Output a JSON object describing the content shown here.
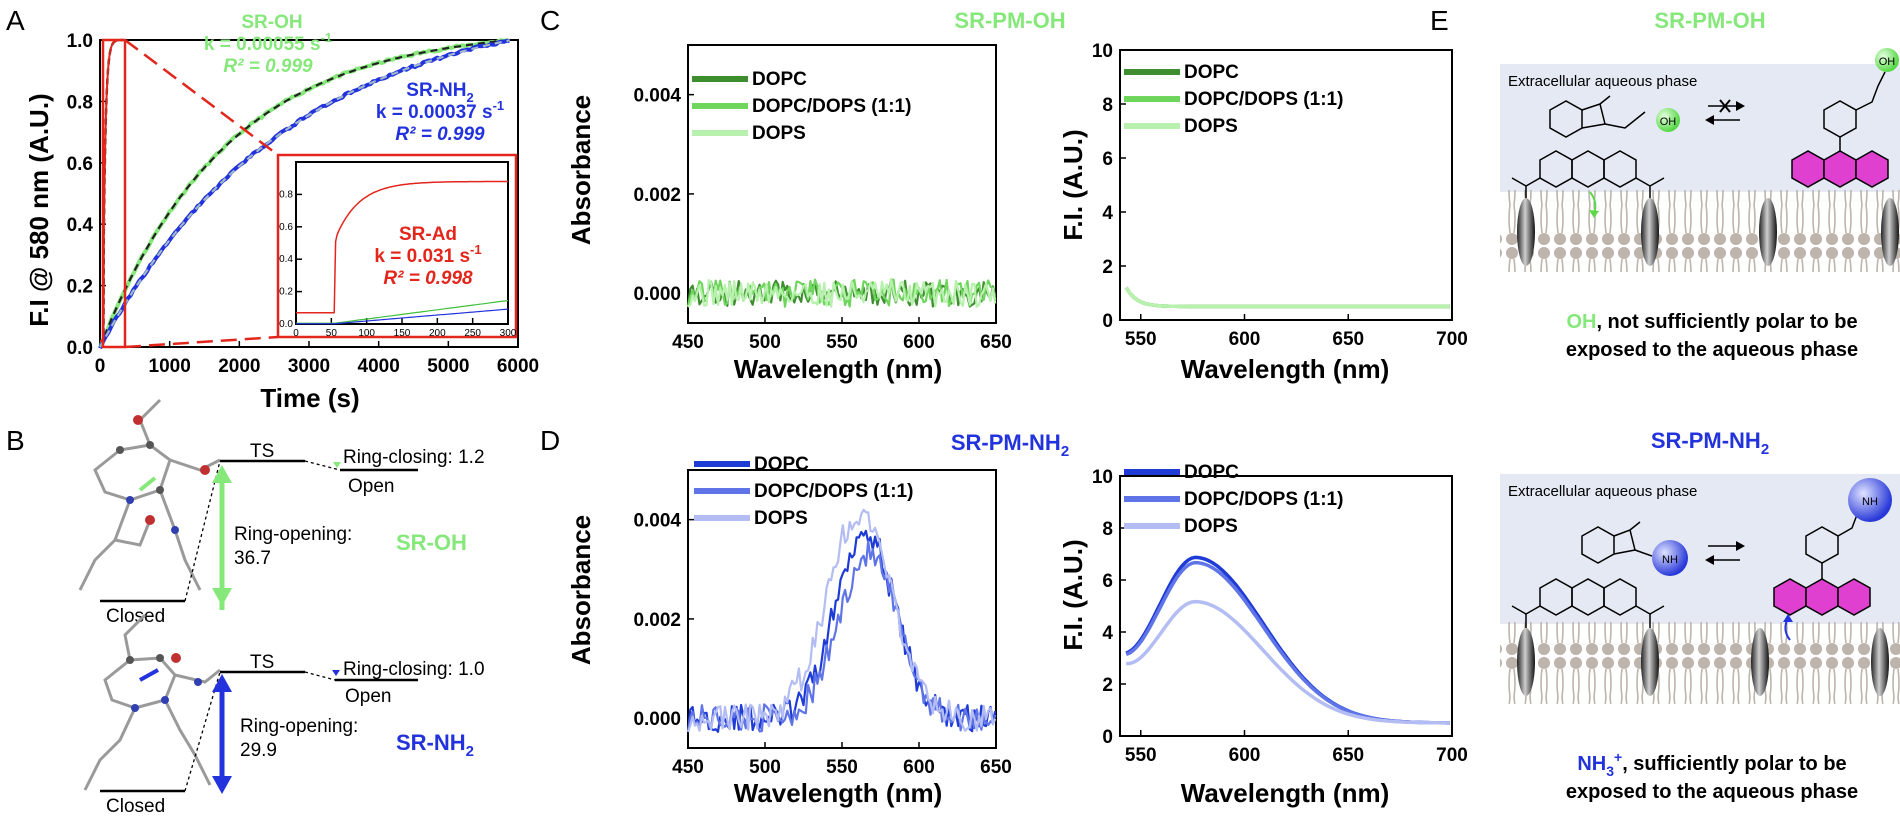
{
  "panels": {
    "A": "A",
    "B": "B",
    "C": "C",
    "D": "D",
    "E": "E"
  },
  "colors": {
    "green": "#86e87a",
    "green_dark": "#3a8a2a",
    "blue": "#2233dd",
    "red": "#e3261c"
  },
  "chart_data": [
    {
      "panel": "A",
      "type": "line",
      "xlabel": "Time (s)",
      "ylabel": "F.I @ 580 nm (A.U.)",
      "xlim": [
        0,
        6000
      ],
      "ylim": [
        0,
        1.0
      ],
      "xticks": [
        "0",
        "1000",
        "2000",
        "3000",
        "4000",
        "5000",
        "6000"
      ],
      "yticks": [
        "0.0",
        "0.2",
        "0.4",
        "0.6",
        "0.8",
        "1.0"
      ],
      "series": [
        {
          "name": "SR-OH",
          "k": 0.00055,
          "color": "#86e87a"
        },
        {
          "name": "SR-NH2",
          "k": 0.00037,
          "color": "#2233dd"
        },
        {
          "name": "SR-Ad",
          "k": 0.031,
          "color": "#e3261c"
        }
      ],
      "annotations": {
        "oh": {
          "name": "SR-OH",
          "k": "k = 0.00055 s",
          "sup": "-1",
          "r2": "R² = 0.999"
        },
        "nh": {
          "name": "SR-NH",
          "sub": "2",
          "k": "k = 0.00037 s",
          "sup": "-1",
          "r2": "R² = 0.999"
        },
        "ad": {
          "name": "SR-Ad",
          "k": "k = 0.031 s",
          "sup": "-1",
          "r2": "R² = 0.998"
        }
      },
      "inset": {
        "xlim": [
          0,
          300
        ],
        "ylim": [
          0,
          1.0
        ],
        "xticks": [
          "0",
          "50",
          "100",
          "150",
          "200",
          "250",
          "300"
        ],
        "yticks": [
          "0.0",
          "0.2",
          "0.4",
          "0.6",
          "0.8"
        ]
      }
    },
    {
      "panel": "C-left",
      "type": "line",
      "title": "SR-PM-OH",
      "xlabel": "Wavelength (nm)",
      "ylabel": "Absorbance",
      "xlim": [
        450,
        650
      ],
      "ylim": [
        -0.0006,
        0.005
      ],
      "xticks": [
        "450",
        "500",
        "550",
        "600",
        "650"
      ],
      "yticks": [
        "0.000",
        "0.002",
        "0.004"
      ],
      "legend": [
        "DOPC",
        "DOPC/DOPS (1:1)",
        "DOPS"
      ],
      "series": [
        {
          "name": "DOPC",
          "color": "#3e8e30",
          "peak": 0,
          "center": 565,
          "sigma": 20
        },
        {
          "name": "DOPC/DOPS (1:1)",
          "color": "#6fd65d",
          "peak": 0,
          "center": 565,
          "sigma": 20
        },
        {
          "name": "DOPS",
          "color": "#b8f0ae",
          "peak": 0,
          "center": 565,
          "sigma": 20
        }
      ]
    },
    {
      "panel": "C-right",
      "type": "line",
      "xlabel": "Wavelength (nm)",
      "ylabel": "F.I. (A.U.)",
      "xlim": [
        540,
        700
      ],
      "ylim": [
        0,
        10
      ],
      "xticks": [
        "550",
        "600",
        "650",
        "700"
      ],
      "yticks": [
        "0",
        "2",
        "4",
        "6",
        "8",
        "10"
      ],
      "legend": [
        "DOPC",
        "DOPC/DOPS (1:1)",
        "DOPS"
      ],
      "series": [
        {
          "name": "DOPC",
          "color": "#3e8e30",
          "peak": 0,
          "base": 0.5
        },
        {
          "name": "DOPC/DOPS (1:1)",
          "color": "#6fd65d",
          "peak": 0,
          "base": 0.5
        },
        {
          "name": "DOPS",
          "color": "#b8f0ae",
          "peak": 0,
          "base": 0.5
        }
      ]
    },
    {
      "panel": "D-left",
      "type": "line",
      "title": "SR-PM-NH",
      "title_sub": "2",
      "xlabel": "Wavelength (nm)",
      "ylabel": "Absorbance",
      "xlim": [
        450,
        650
      ],
      "ylim": [
        -0.0006,
        0.005
      ],
      "xticks": [
        "450",
        "500",
        "550",
        "600",
        "650"
      ],
      "yticks": [
        "0.000",
        "0.002",
        "0.004"
      ],
      "legend": [
        "DOPC",
        "DOPC/DOPS (1:1)",
        "DOPS"
      ],
      "series": [
        {
          "name": "DOPC",
          "color": "#1f3bd6",
          "peak": 0.0038,
          "center": 565,
          "sigma": 19
        },
        {
          "name": "DOPC/DOPS (1:1)",
          "color": "#5f74e6",
          "peak": 0.0033,
          "center": 567,
          "sigma": 19
        },
        {
          "name": "DOPS",
          "color": "#b3bdf3",
          "peak": 0.0041,
          "center": 561,
          "sigma": 21
        }
      ]
    },
    {
      "panel": "D-right",
      "type": "line",
      "xlabel": "Wavelength (nm)",
      "ylabel": "F.I. (A.U.)",
      "xlim": [
        540,
        700
      ],
      "ylim": [
        0,
        10
      ],
      "xticks": [
        "550",
        "600",
        "650",
        "700"
      ],
      "yticks": [
        "0",
        "2",
        "4",
        "6",
        "8",
        "10"
      ],
      "legend": [
        "DOPC",
        "DOPC/DOPS (1:1)",
        "DOPS"
      ],
      "series": [
        {
          "name": "DOPC",
          "color": "#1f3bd6",
          "peak": 6.3,
          "center": 577,
          "base": 0.5
        },
        {
          "name": "DOPC/DOPS (1:1)",
          "color": "#5f74e6",
          "peak": 6.1,
          "center": 577,
          "base": 0.5
        },
        {
          "name": "DOPS",
          "color": "#b3bdf3",
          "peak": 4.6,
          "center": 577,
          "base": 0.5
        }
      ]
    }
  ],
  "panel_b": {
    "oh": {
      "ts": "TS",
      "closing": "Ring-closing: 1.2",
      "open": "Open",
      "opening1": "Ring-opening:",
      "opening2": "36.7",
      "closed": "Closed",
      "label": "SR-OH"
    },
    "nh": {
      "ts": "TS",
      "closing": "Ring-closing: 1.0",
      "open": "Open",
      "opening1": "Ring-opening:",
      "opening2": "29.9",
      "closed": "Closed",
      "label": "SR-NH",
      "label_sub": "2"
    }
  },
  "panel_e": {
    "top": {
      "title": "SR-PM-OH",
      "phase": "Extracellular aqueous phase",
      "group": "OH",
      "cap1_hl": "OH",
      "cap1_rest": ", not sufficiently polar to be",
      "cap2": "exposed to the aqueous phase"
    },
    "bottom": {
      "title": "SR-PM-NH",
      "title_sub": "2",
      "phase": "Extracellular aqueous phase",
      "group": "NH",
      "cap1_hl": "NH",
      "cap1_sub": "3",
      "cap1_sup": "+",
      "cap1_rest": ", sufficiently polar to be",
      "cap2": "exposed to the aqueous phase"
    }
  }
}
